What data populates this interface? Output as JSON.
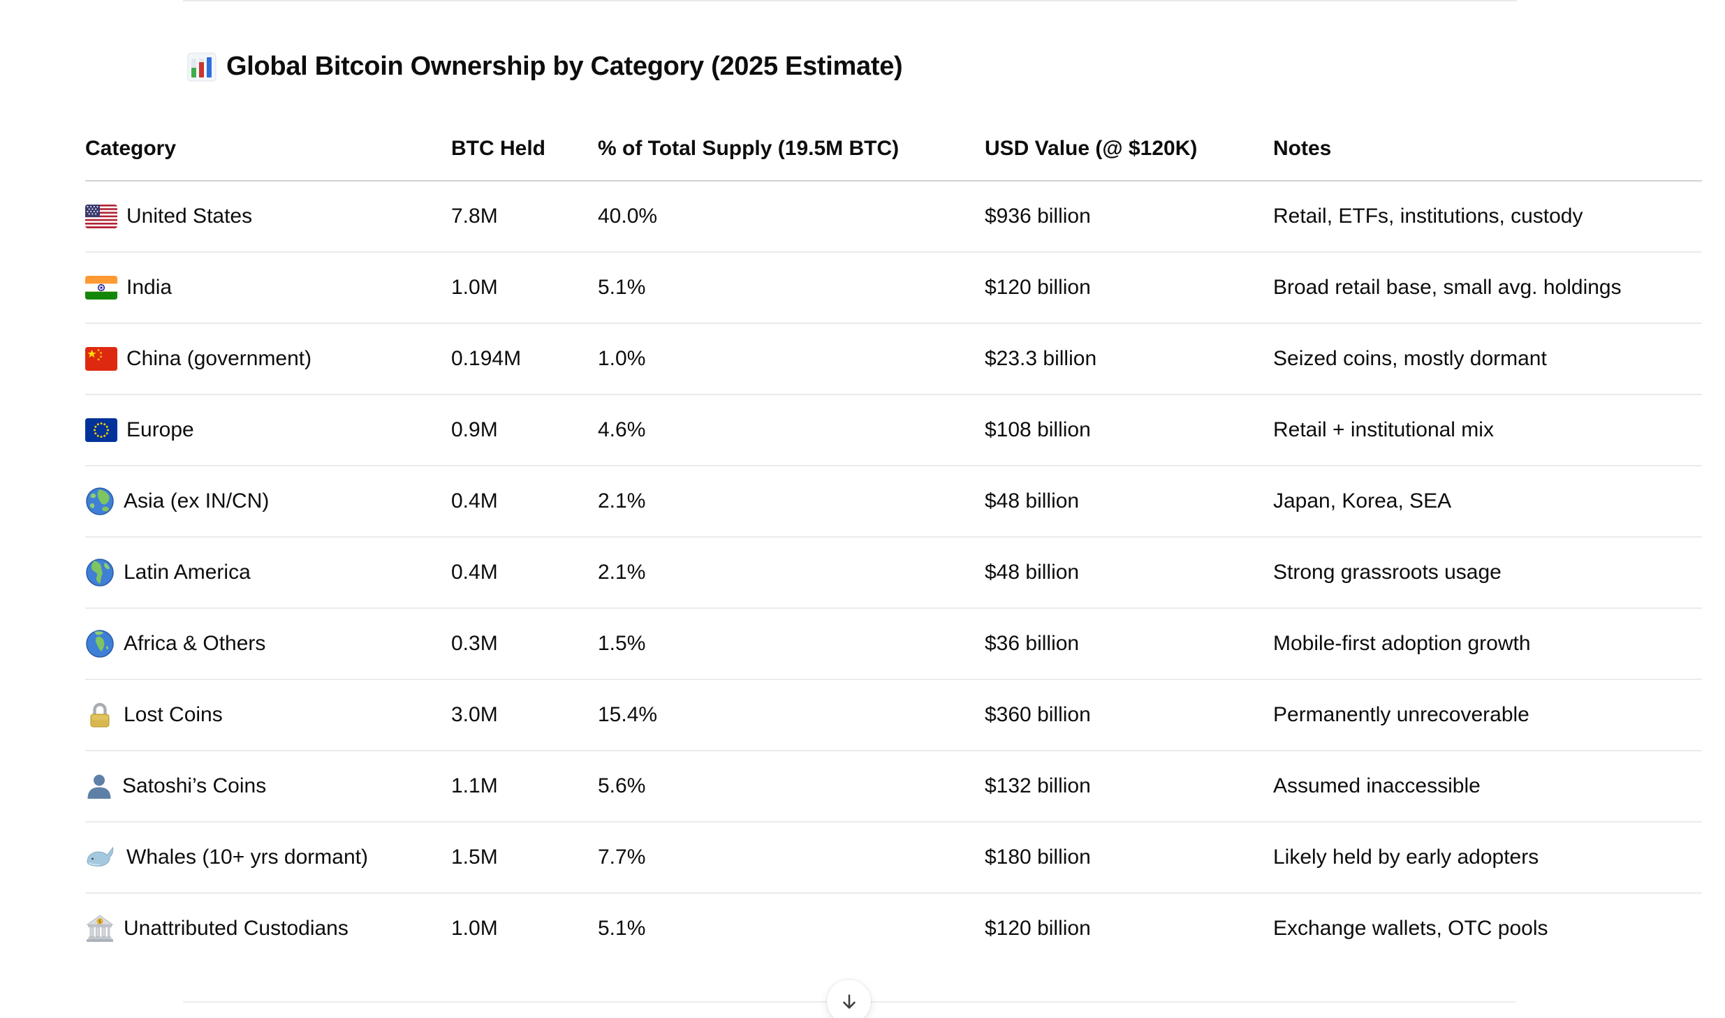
{
  "page": {
    "title": "Global Bitcoin Ownership by Category (2025 Estimate)",
    "title_icon": "bar-chart-icon"
  },
  "table": {
    "columns": [
      "Category",
      "BTC Held",
      "% of Total Supply (19.5M BTC)",
      "USD Value (@ $120K)",
      "Notes"
    ],
    "rows": [
      {
        "icon": "us-flag-icon",
        "category": "United States",
        "btc": "7.8M",
        "pct": "40.0%",
        "usd": "$936 billion",
        "notes": "Retail, ETFs, institutions, custody"
      },
      {
        "icon": "india-flag-icon",
        "category": "India",
        "btc": "1.0M",
        "pct": "5.1%",
        "usd": "$120 billion",
        "notes": "Broad retail base, small avg. holdings"
      },
      {
        "icon": "china-flag-icon",
        "category": "China (government)",
        "btc": "0.194M",
        "pct": "1.0%",
        "usd": "$23.3 billion",
        "notes": "Seized coins, mostly dormant"
      },
      {
        "icon": "eu-flag-icon",
        "category": "Europe",
        "btc": "0.9M",
        "pct": "4.6%",
        "usd": "$108 billion",
        "notes": "Retail + institutional mix"
      },
      {
        "icon": "globe-asia-icon",
        "category": "Asia (ex IN/CN)",
        "btc": "0.4M",
        "pct": "2.1%",
        "usd": "$48 billion",
        "notes": "Japan, Korea, SEA"
      },
      {
        "icon": "globe-americas-icon",
        "category": "Latin America",
        "btc": "0.4M",
        "pct": "2.1%",
        "usd": "$48 billion",
        "notes": "Strong grassroots usage"
      },
      {
        "icon": "globe-africa-icon",
        "category": "Africa & Others",
        "btc": "0.3M",
        "pct": "1.5%",
        "usd": "$36 billion",
        "notes": "Mobile-first adoption growth"
      },
      {
        "icon": "lock-icon",
        "category": "Lost Coins",
        "btc": "3.0M",
        "pct": "15.4%",
        "usd": "$360 billion",
        "notes": "Permanently unrecoverable"
      },
      {
        "icon": "person-icon",
        "category": "Satoshi’s Coins",
        "btc": "1.1M",
        "pct": "5.6%",
        "usd": "$132 billion",
        "notes": "Assumed inaccessible"
      },
      {
        "icon": "whale-icon",
        "category": "Whales (10+ yrs dormant)",
        "btc": "1.5M",
        "pct": "7.7%",
        "usd": "$180 billion",
        "notes": "Likely held by early adopters"
      },
      {
        "icon": "bank-icon",
        "category": "Unattributed Custodians",
        "btc": "1.0M",
        "pct": "5.1%",
        "usd": "$120 billion",
        "notes": "Exchange wallets, OTC pools"
      }
    ]
  },
  "scroll_button": {
    "icon": "arrow-down-icon"
  }
}
